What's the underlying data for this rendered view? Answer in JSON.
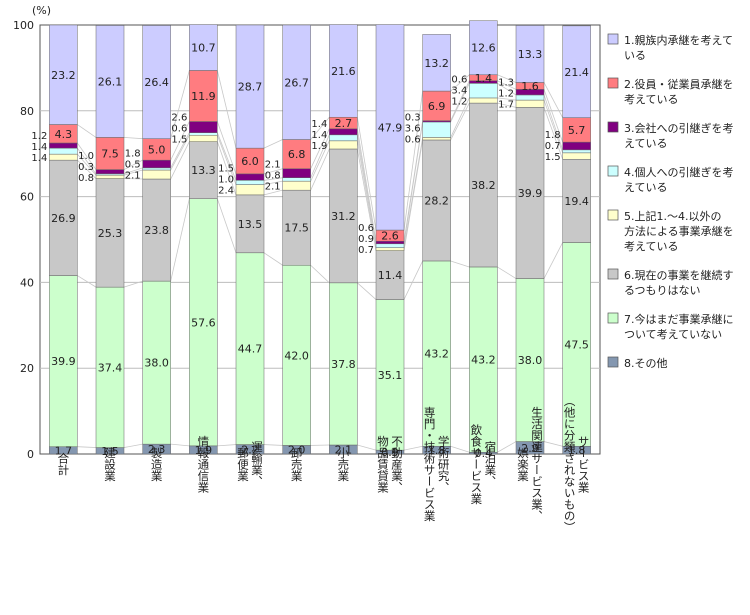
{
  "chart_data": {
    "type": "bar",
    "stacked": true,
    "unit_label": "(%)",
    "ylim": [
      0,
      100
    ],
    "yticks": [
      0,
      20,
      40,
      60,
      80,
      100
    ],
    "grid": true,
    "legend_position": "right",
    "categories": [
      "合計",
      "建設業",
      "製造業",
      "情報通信業",
      "運輸業，郵便業",
      "卸売業",
      "小売業",
      "不動産業，物品賃貸業",
      "学術研究，専門・技術サービス業",
      "宿泊業，飲食サービス業",
      "生活関連サービス業，娯楽業",
      "サービス業（他に分類されないもの）"
    ],
    "series": [
      {
        "name": "8.その他",
        "color": "#8497b0",
        "values": [
          1.7,
          1.5,
          2.3,
          1.9,
          2.2,
          2.0,
          2.1,
          0.9,
          1.8,
          0.4,
          2.9,
          1.8
        ]
      },
      {
        "name": "7.今はまだ事業承継について考えていない",
        "color": "#ccffcc",
        "values": [
          39.9,
          37.4,
          38.0,
          57.6,
          44.7,
          42.0,
          37.8,
          35.1,
          43.2,
          43.2,
          38.0,
          47.5
        ]
      },
      {
        "name": "6.現在の事業を継続するつもりはない",
        "color": "#c8c8c8",
        "values": [
          26.9,
          25.3,
          23.8,
          13.3,
          13.5,
          17.5,
          31.2,
          11.4,
          28.2,
          38.2,
          39.9,
          19.4
        ]
      },
      {
        "name": "5.上記1.～4.以外の方法による事業承継を考えている",
        "color": "#ffffcc",
        "values": [
          1.4,
          0.8,
          2.1,
          1.5,
          2.4,
          2.1,
          1.9,
          0.7,
          0.6,
          1.2,
          1.7,
          1.5
        ]
      },
      {
        "name": "4.個人への引継ぎを考えている",
        "color": "#ccffff",
        "values": [
          1.4,
          0.3,
          0.5,
          0.6,
          1.0,
          0.8,
          1.4,
          0.9,
          3.6,
          3.4,
          1.2,
          0.7
        ]
      },
      {
        "name": "3.会社への引継ぎを考えている",
        "color": "#800080",
        "values": [
          1.2,
          1.0,
          1.8,
          2.6,
          1.5,
          2.1,
          1.4,
          0.6,
          0.3,
          0.6,
          1.3,
          1.8
        ]
      },
      {
        "name": "2.役員・従業員承継を考えている",
        "color": "#ff7c80",
        "values": [
          4.3,
          7.5,
          5.0,
          11.9,
          6.0,
          6.8,
          2.7,
          2.6,
          6.9,
          1.4,
          1.6,
          5.7
        ]
      },
      {
        "name": "1.親族内承継を考えている",
        "color": "#ccccff",
        "values": [
          23.2,
          26.1,
          26.4,
          10.7,
          28.7,
          26.7,
          21.6,
          47.9,
          13.2,
          12.6,
          13.3,
          21.4
        ]
      }
    ],
    "legend_labels": [
      [
        "1.親族内承継を考えて",
        "いる"
      ],
      [
        "2.役員・従業員承継を",
        "考えている"
      ],
      [
        "3.会社への引継ぎを考",
        "えている"
      ],
      [
        "4.個人への引継ぎを考",
        "えている"
      ],
      [
        "5.上記1.～4.以外の",
        "方法による事業承継を",
        "考えている"
      ],
      [
        "6.現在の事業を継続す",
        "るつもりはない"
      ],
      [
        "7.今はまだ事業承継に",
        "ついて考えていない"
      ],
      [
        "8.その他"
      ]
    ],
    "legend_colors": [
      "#ccccff",
      "#ff7c80",
      "#800080",
      "#ccffff",
      "#ffffcc",
      "#c8c8c8",
      "#ccffcc",
      "#8497b0"
    ],
    "category_label_lines": [
      [
        "合計"
      ],
      [
        "建設業"
      ],
      [
        "製造業"
      ],
      [
        "情報通信業"
      ],
      [
        "運輸業、",
        "郵便業"
      ],
      [
        "卸売業"
      ],
      [
        "小売業"
      ],
      [
        "不動産業、",
        "物品賃貸業"
      ],
      [
        "学術研究、",
        "専門・技術サービス業"
      ],
      [
        "宿泊業、",
        "飲食サービス業"
      ],
      [
        "生活関連サービス業、",
        "娯楽業"
      ],
      [
        "サービス業",
        "（他に分類されないもの）"
      ]
    ]
  }
}
